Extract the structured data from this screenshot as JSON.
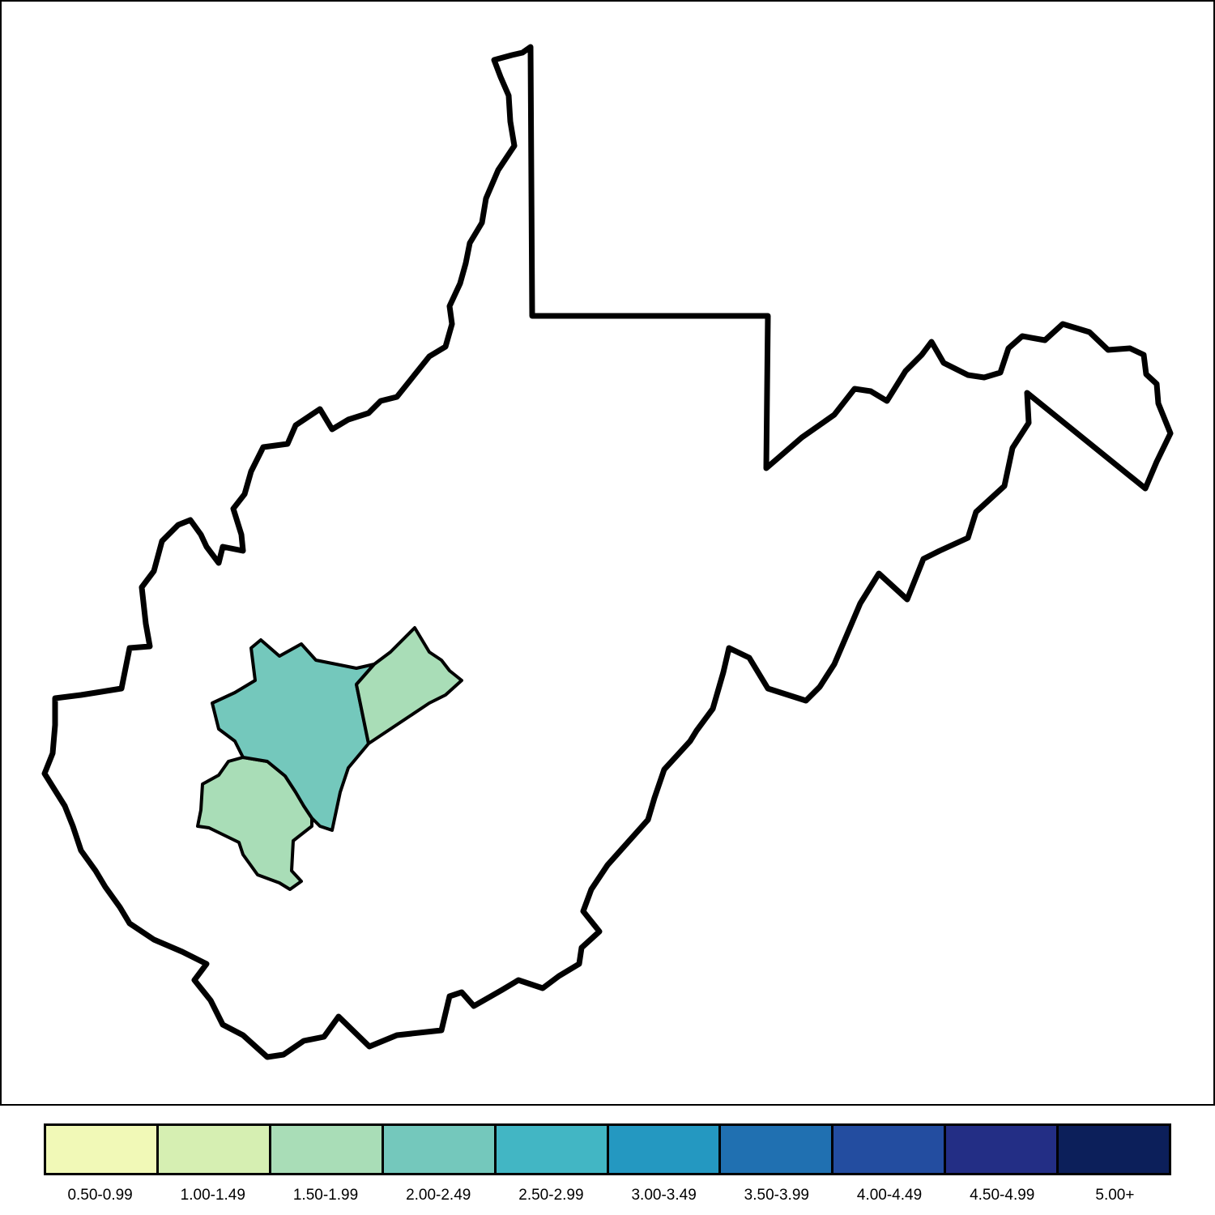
{
  "map": {
    "region": "West Virginia",
    "outline_color": "#000000",
    "background_color": "#ffffff",
    "counties": [
      {
        "id": "county-central",
        "bin_index": 3
      },
      {
        "id": "county-east",
        "bin_index": 2
      },
      {
        "id": "county-southwest",
        "bin_index": 2
      }
    ]
  },
  "legend": {
    "bins": [
      {
        "label": "0.50-0.99",
        "color": "#f1f9b7"
      },
      {
        "label": "1.00-1.49",
        "color": "#d6efb2"
      },
      {
        "label": "1.50-1.99",
        "color": "#a9ddb7"
      },
      {
        "label": "2.00-2.49",
        "color": "#74c8bc"
      },
      {
        "label": "2.50-2.99",
        "color": "#42b6c4"
      },
      {
        "label": "3.00-3.49",
        "color": "#2498c1"
      },
      {
        "label": "3.50-3.99",
        "color": "#2070b1"
      },
      {
        "label": "4.00-4.49",
        "color": "#234da0"
      },
      {
        "label": "4.50-4.99",
        "color": "#232e85"
      },
      {
        "label": "5.00+",
        "color": "#0c1f5a"
      }
    ]
  }
}
